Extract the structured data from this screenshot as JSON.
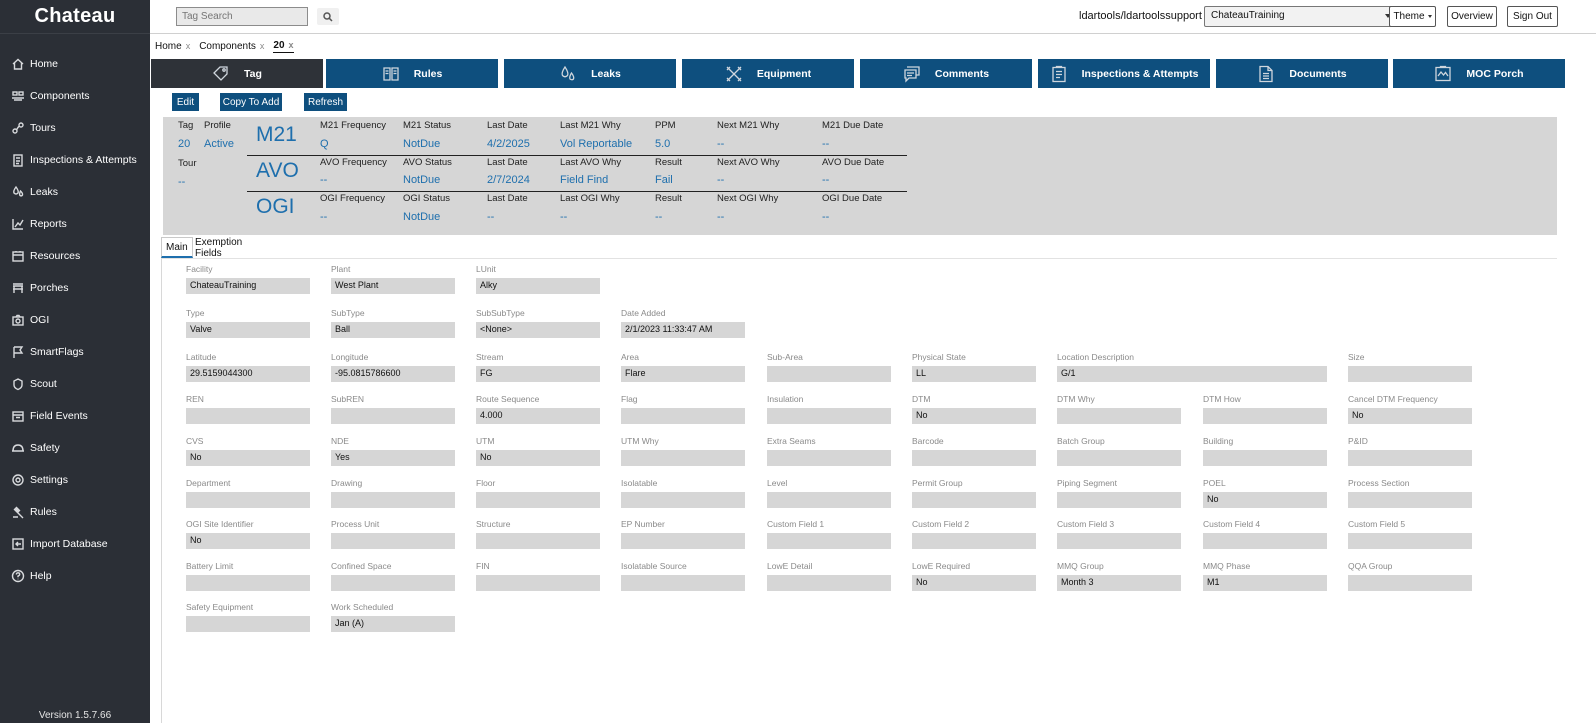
{
  "app": {
    "logo": "Chateau",
    "version": "Version 1.5.7.66"
  },
  "sidebar": {
    "items": [
      {
        "label": "Home",
        "icon": "home-icon"
      },
      {
        "label": "Components",
        "icon": "components-icon"
      },
      {
        "label": "Tours",
        "icon": "tours-icon"
      },
      {
        "label": "Inspections & Attempts",
        "icon": "clipboard-icon"
      },
      {
        "label": "Leaks",
        "icon": "drops-icon"
      },
      {
        "label": "Reports",
        "icon": "chart-icon"
      },
      {
        "label": "Resources",
        "icon": "resources-icon"
      },
      {
        "label": "Porches",
        "icon": "porch-icon"
      },
      {
        "label": "OGI",
        "icon": "camera-icon"
      },
      {
        "label": "SmartFlags",
        "icon": "flag-icon"
      },
      {
        "label": "Scout",
        "icon": "scout-icon"
      },
      {
        "label": "Field Events",
        "icon": "calendar-icon"
      },
      {
        "label": "Safety",
        "icon": "hardhat-icon"
      },
      {
        "label": "Settings",
        "icon": "gear-icon"
      },
      {
        "label": "Rules",
        "icon": "gavel-icon"
      },
      {
        "label": "Import Database",
        "icon": "import-icon"
      },
      {
        "label": "Help",
        "icon": "help-icon"
      }
    ]
  },
  "header": {
    "search_placeholder": "Tag Search",
    "user": "ldartools/ldartoolssupport",
    "site": "ChateauTraining",
    "theme_label": "Theme",
    "overview_label": "Overview",
    "signout_label": "Sign Out"
  },
  "breadcrumbs": [
    {
      "label": "Home",
      "close": "x"
    },
    {
      "label": "Components",
      "close": "x"
    },
    {
      "label": "20",
      "close": "x"
    }
  ],
  "tabs": [
    {
      "label": "Tag",
      "icon": "tag-icon"
    },
    {
      "label": "Rules",
      "icon": "book-icon"
    },
    {
      "label": "Leaks",
      "icon": "drops-icon"
    },
    {
      "label": "Equipment",
      "icon": "tools-icon"
    },
    {
      "label": "Comments",
      "icon": "comments-icon"
    },
    {
      "label": "Inspections & Attempts",
      "icon": "clipboard-icon"
    },
    {
      "label": "Documents",
      "icon": "document-icon"
    },
    {
      "label": "MOC Porch",
      "icon": "moc-icon"
    }
  ],
  "actions": {
    "edit": "Edit",
    "copy": "Copy To Add",
    "refresh": "Refresh"
  },
  "summary": {
    "tag_label": "Tag",
    "tag_value": "20",
    "profile_label": "Profile",
    "profile_value": "Active",
    "tour_label": "Tour",
    "tour_value": "--",
    "rows": [
      {
        "name": "M21",
        "cells": [
          {
            "label": "M21 Frequency",
            "value": "Q"
          },
          {
            "label": "M21 Status",
            "value": "NotDue"
          },
          {
            "label": "Last Date",
            "value": "4/2/2025"
          },
          {
            "label": "Last M21 Why",
            "value": "Vol Reportable"
          },
          {
            "label": "PPM",
            "value": "5.0"
          },
          {
            "label": "Next M21 Why",
            "value": "--"
          },
          {
            "label": "M21 Due Date",
            "value": "--"
          }
        ]
      },
      {
        "name": "AVO",
        "cells": [
          {
            "label": "AVO Frequency",
            "value": "--"
          },
          {
            "label": "AVO Status",
            "value": "NotDue"
          },
          {
            "label": "Last Date",
            "value": "2/7/2024"
          },
          {
            "label": "Last AVO Why",
            "value": "Field Find"
          },
          {
            "label": "Result",
            "value": "Fail"
          },
          {
            "label": "Next AVO Why",
            "value": "--"
          },
          {
            "label": "AVO Due Date",
            "value": "--"
          }
        ]
      },
      {
        "name": "OGI",
        "cells": [
          {
            "label": "OGI Frequency",
            "value": "--"
          },
          {
            "label": "OGI Status",
            "value": "NotDue"
          },
          {
            "label": "Last Date",
            "value": "--"
          },
          {
            "label": "Last OGI Why",
            "value": "--"
          },
          {
            "label": "Result",
            "value": "--"
          },
          {
            "label": "Next OGI Why",
            "value": "--"
          },
          {
            "label": "OGI Due Date",
            "value": "--"
          }
        ]
      }
    ]
  },
  "subtabs": {
    "main": "Main",
    "exemption": "Exemption Fields"
  },
  "fields": {
    "facility": {
      "label": "Facility",
      "value": "ChateauTraining"
    },
    "plant": {
      "label": "Plant",
      "value": "West Plant"
    },
    "lunit": {
      "label": "LUnit",
      "value": "Alky"
    },
    "type": {
      "label": "Type",
      "value": "Valve"
    },
    "subtype": {
      "label": "SubType",
      "value": "Ball"
    },
    "subsubtype": {
      "label": "SubSubType",
      "value": "<None>"
    },
    "date_added": {
      "label": "Date Added",
      "value": "2/1/2023 11:33:47 AM"
    },
    "latitude": {
      "label": "Latitude",
      "value": "29.5159044300"
    },
    "longitude": {
      "label": "Longitude",
      "value": "-95.0815786600"
    },
    "stream": {
      "label": "Stream",
      "value": "FG"
    },
    "area": {
      "label": "Area",
      "value": "Flare"
    },
    "sub_area": {
      "label": "Sub-Area",
      "value": ""
    },
    "physical_state": {
      "label": "Physical State",
      "value": "LL"
    },
    "location_description": {
      "label": "Location Description",
      "value": "G/1"
    },
    "size": {
      "label": "Size",
      "value": ""
    },
    "ren": {
      "label": "REN",
      "value": ""
    },
    "subren": {
      "label": "SubREN",
      "value": ""
    },
    "route_sequence": {
      "label": "Route Sequence",
      "value": "4.000"
    },
    "flag": {
      "label": "Flag",
      "value": ""
    },
    "insulation": {
      "label": "Insulation",
      "value": ""
    },
    "dtm": {
      "label": "DTM",
      "value": "No"
    },
    "dtm_why": {
      "label": "DTM Why",
      "value": ""
    },
    "dtm_how": {
      "label": "DTM How",
      "value": ""
    },
    "cancel_dtm_frequency": {
      "label": "Cancel DTM Frequency",
      "value": "No"
    },
    "cvs": {
      "label": "CVS",
      "value": "No"
    },
    "nde": {
      "label": "NDE",
      "value": "Yes"
    },
    "utm": {
      "label": "UTM",
      "value": "No"
    },
    "utm_why": {
      "label": "UTM Why",
      "value": ""
    },
    "extra_seams": {
      "label": "Extra Seams",
      "value": ""
    },
    "barcode": {
      "label": "Barcode",
      "value": ""
    },
    "batch_group": {
      "label": "Batch Group",
      "value": ""
    },
    "building": {
      "label": "Building",
      "value": ""
    },
    "pid": {
      "label": "P&ID",
      "value": ""
    },
    "department": {
      "label": "Department",
      "value": ""
    },
    "drawing": {
      "label": "Drawing",
      "value": ""
    },
    "floor": {
      "label": "Floor",
      "value": ""
    },
    "isolatable": {
      "label": "Isolatable",
      "value": ""
    },
    "level": {
      "label": "Level",
      "value": ""
    },
    "permit_group": {
      "label": "Permit Group",
      "value": ""
    },
    "piping_segment": {
      "label": "Piping Segment",
      "value": ""
    },
    "poel": {
      "label": "POEL",
      "value": "No"
    },
    "process_section": {
      "label": "Process Section",
      "value": ""
    },
    "ogi_site_identifier": {
      "label": "OGI Site Identifier",
      "value": "No"
    },
    "process_unit": {
      "label": "Process Unit",
      "value": ""
    },
    "structure": {
      "label": "Structure",
      "value": ""
    },
    "ep_number": {
      "label": "EP Number",
      "value": ""
    },
    "custom_field_1": {
      "label": "Custom Field 1",
      "value": ""
    },
    "custom_field_2": {
      "label": "Custom Field 2",
      "value": ""
    },
    "custom_field_3": {
      "label": "Custom Field 3",
      "value": ""
    },
    "custom_field_4": {
      "label": "Custom Field 4",
      "value": ""
    },
    "custom_field_5": {
      "label": "Custom Field 5",
      "value": ""
    },
    "battery_limit": {
      "label": "Battery Limit",
      "value": ""
    },
    "confined_space": {
      "label": "Confined Space",
      "value": ""
    },
    "fin": {
      "label": "FIN",
      "value": ""
    },
    "isolatable_source": {
      "label": "Isolatable Source",
      "value": ""
    },
    "lowe_detail": {
      "label": "LowE Detail",
      "value": ""
    },
    "lowe_required": {
      "label": "LowE Required",
      "value": "No"
    },
    "mmq_group": {
      "label": "MMQ Group",
      "value": "Month 3"
    },
    "mmq_phase": {
      "label": "MMQ Phase",
      "value": "M1"
    },
    "qqa_group": {
      "label": "QQA Group",
      "value": ""
    },
    "safety_equipment": {
      "label": "Safety Equipment",
      "value": ""
    },
    "work_scheduled": {
      "label": "Work Scheduled",
      "value": "Jan (A)"
    }
  },
  "colors": {
    "sidebar": "#2b2f36",
    "tab": "#0e4f7e",
    "tab_active": "#2e3238",
    "value_blue": "#1e6fad",
    "field_bg": "#d6d6d6"
  }
}
